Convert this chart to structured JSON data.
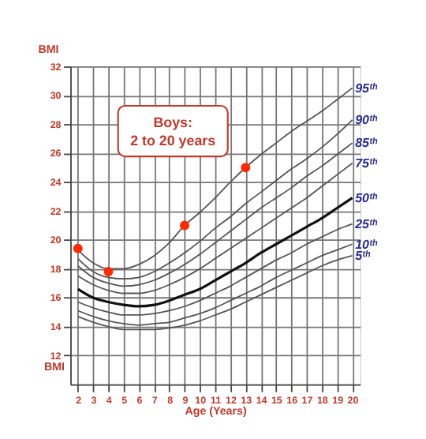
{
  "chart_data": {
    "type": "line",
    "xlabel": "Age (Years)",
    "ylabel": "BMI",
    "annotations": [
      "Boys:\n2 to 20 years"
    ],
    "x": [
      2,
      3,
      4,
      5,
      6,
      7,
      8,
      9,
      10,
      11,
      12,
      13,
      14,
      15,
      16,
      17,
      18,
      19,
      20
    ],
    "xlim": [
      1.5,
      20.5
    ],
    "xticks": [
      2,
      3,
      4,
      5,
      6,
      7,
      8,
      9,
      10,
      11,
      12,
      13,
      14,
      15,
      16,
      17,
      18,
      19,
      20
    ],
    "ylim": [
      10,
      32
    ],
    "yticks": [
      12,
      14,
      16,
      18,
      20,
      22,
      24,
      26,
      28,
      30,
      32
    ],
    "grid": true,
    "line_style": "solid",
    "series": [
      {
        "name": "95ᵗʰ",
        "color": "#555555",
        "values": [
          19.3,
          18.4,
          18.0,
          18.0,
          18.3,
          18.9,
          19.8,
          21.0,
          21.9,
          22.9,
          24.0,
          25.0,
          25.9,
          26.7,
          27.5,
          28.2,
          28.9,
          29.7,
          30.5
        ]
      },
      {
        "name": "90ᵗʰ",
        "color": "#555555",
        "values": [
          18.7,
          17.8,
          17.4,
          17.3,
          17.4,
          17.8,
          18.4,
          19.1,
          19.9,
          20.8,
          21.6,
          22.5,
          23.3,
          24.1,
          24.9,
          25.6,
          26.4,
          27.3,
          28.3
        ]
      },
      {
        "name": "85ᵗʰ",
        "color": "#555555",
        "values": [
          18.2,
          17.4,
          17.0,
          16.8,
          16.9,
          17.2,
          17.7,
          18.3,
          19.0,
          19.8,
          20.6,
          21.4,
          22.2,
          22.9,
          23.6,
          24.4,
          25.1,
          25.9,
          26.7
        ]
      },
      {
        "name": "75ᵗʰ",
        "color": "#555555",
        "values": [
          17.5,
          16.9,
          16.5,
          16.3,
          16.3,
          16.5,
          16.9,
          17.4,
          18.0,
          18.7,
          19.4,
          20.1,
          20.8,
          21.5,
          22.2,
          22.9,
          23.7,
          24.5,
          25.3
        ]
      },
      {
        "name": "50ᵗʰ",
        "color": "#111111",
        "values": [
          16.6,
          16.0,
          15.7,
          15.5,
          15.4,
          15.5,
          15.8,
          16.2,
          16.6,
          17.2,
          17.8,
          18.4,
          19.1,
          19.7,
          20.3,
          20.9,
          21.5,
          22.2,
          22.9
        ]
      },
      {
        "name": "25ᵗʰ",
        "color": "#555555",
        "values": [
          15.7,
          15.3,
          15.0,
          14.8,
          14.8,
          14.9,
          15.1,
          15.4,
          15.8,
          16.3,
          16.8,
          17.4,
          18.0,
          18.6,
          19.1,
          19.7,
          20.2,
          20.7,
          21.1
        ]
      },
      {
        "name": "10ᵗʰ",
        "color": "#555555",
        "values": [
          15.1,
          14.7,
          14.4,
          14.2,
          14.1,
          14.2,
          14.3,
          14.6,
          14.9,
          15.3,
          15.8,
          16.3,
          16.8,
          17.4,
          17.9,
          18.4,
          18.9,
          19.3,
          19.7
        ]
      },
      {
        "name": "5ᵗʰ",
        "color": "#555555",
        "values": [
          14.7,
          14.3,
          14.0,
          13.8,
          13.8,
          13.8,
          13.9,
          14.1,
          14.4,
          14.8,
          15.2,
          15.7,
          16.2,
          16.7,
          17.2,
          17.7,
          18.2,
          18.6,
          18.9
        ]
      },
      {
        "type": "scatter",
        "color": "#ff2a00",
        "x": [
          2,
          4,
          9,
          13
        ],
        "values": [
          19.4,
          17.8,
          21.0,
          25.0
        ]
      }
    ]
  }
}
